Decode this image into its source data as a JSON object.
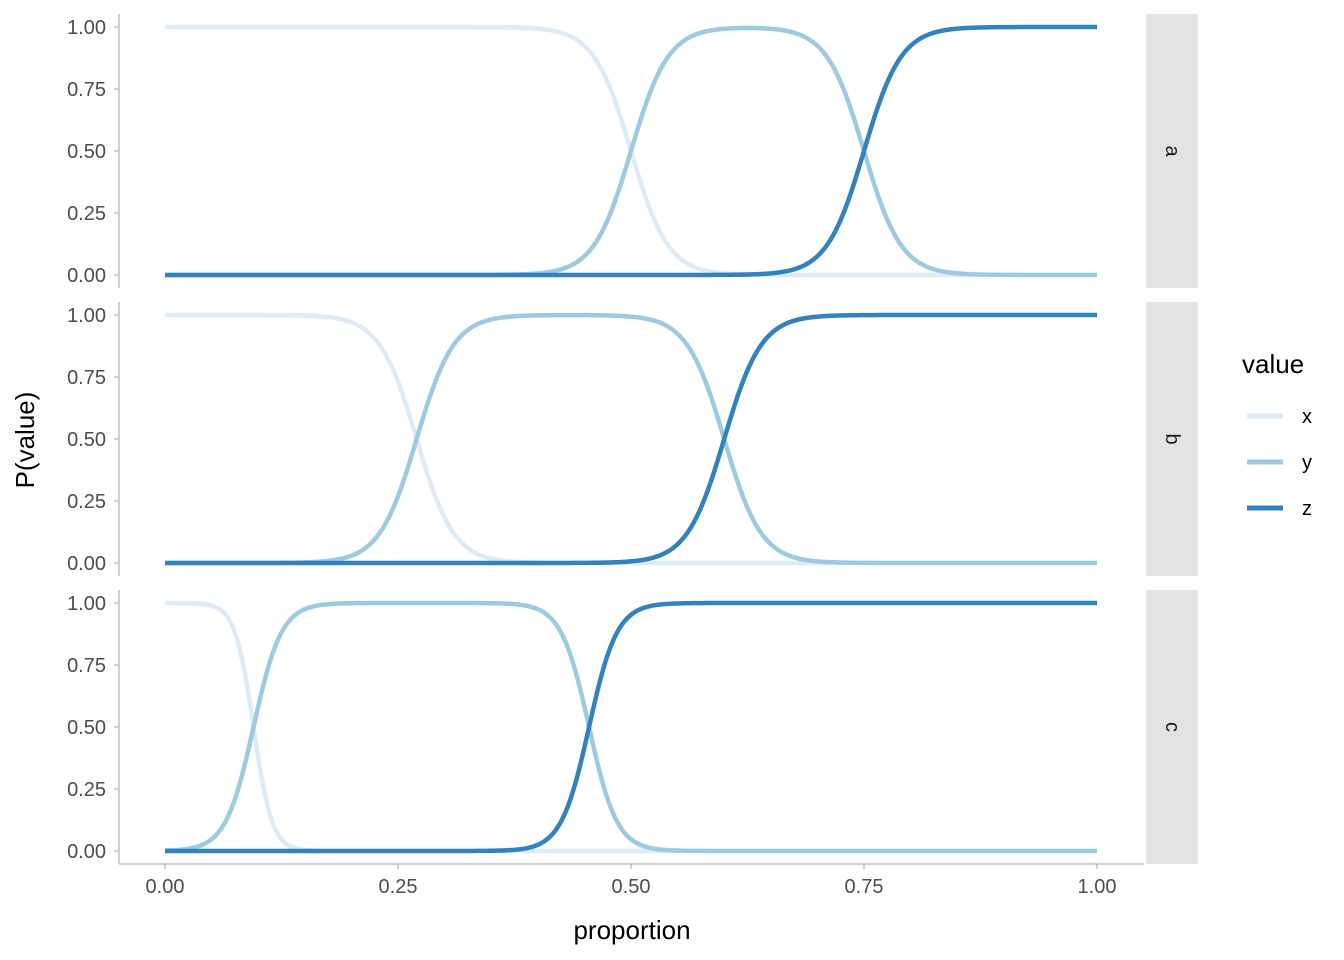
{
  "chart_data": {
    "type": "line",
    "xlabel": "proportion",
    "ylabel": "P(value)",
    "xlim": [
      0,
      1
    ],
    "ylim": [
      0,
      1
    ],
    "x_ticks": [
      "0.00",
      "0.25",
      "0.50",
      "0.75",
      "1.00"
    ],
    "y_ticks": [
      "0.00",
      "0.25",
      "0.50",
      "0.75",
      "1.00"
    ],
    "grid": false,
    "legend": {
      "title": "value",
      "position": "right",
      "entries": [
        "x",
        "y",
        "z"
      ]
    },
    "series_colors": {
      "x": "#deebf7",
      "y": "#9ecae1",
      "z": "#3182bd"
    },
    "panels": [
      {
        "label": "a",
        "series": [
          {
            "name": "x",
            "type": "falling",
            "mid": 0.5,
            "scale": 0.02
          },
          {
            "name": "y",
            "type": "bump",
            "rise_mid": 0.5,
            "fall_mid": 0.75,
            "scale": 0.02
          },
          {
            "name": "z",
            "type": "rising",
            "mid": 0.75,
            "scale": 0.02
          }
        ]
      },
      {
        "label": "b",
        "series": [
          {
            "name": "x",
            "type": "falling",
            "mid": 0.27,
            "scale": 0.02
          },
          {
            "name": "y",
            "type": "bump",
            "rise_mid": 0.27,
            "fall_mid": 0.6,
            "scale": 0.02
          },
          {
            "name": "z",
            "type": "rising",
            "mid": 0.6,
            "scale": 0.02
          }
        ]
      },
      {
        "label": "c",
        "series": [
          {
            "name": "x",
            "type": "falling",
            "mid": 0.095,
            "scale": 0.01
          },
          {
            "name": "y",
            "type": "bump",
            "rise_mid": 0.095,
            "fall_mid": 0.455,
            "scale": 0.015
          },
          {
            "name": "z",
            "type": "rising",
            "mid": 0.455,
            "scale": 0.015
          }
        ]
      }
    ]
  }
}
